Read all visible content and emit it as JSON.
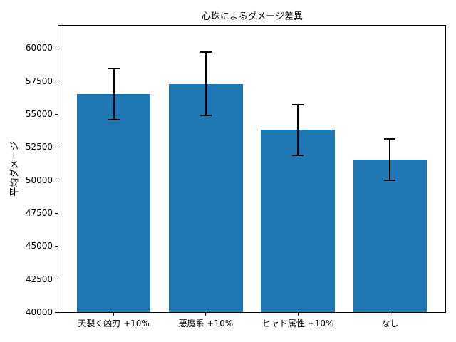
{
  "chart_data": {
    "type": "bar",
    "title": "心珠によるダメージ差異",
    "xlabel": "",
    "ylabel": "平均ダメージ",
    "categories": [
      "天裂く凶刃 +10%",
      "悪魔系 +10%",
      "ヒャド属性 +10%",
      "なし"
    ],
    "values": [
      56500,
      57300,
      53800,
      51550
    ],
    "error_bars": [
      1950,
      2400,
      1900,
      1550
    ],
    "ylim": [
      40000,
      61700
    ],
    "yticks": [
      40000,
      42500,
      45000,
      47500,
      50000,
      52500,
      55000,
      57500,
      60000
    ],
    "bar_width_fraction": 0.8,
    "bar_color": "#1f77b4",
    "error_color": "#000000",
    "axis_color": "#000000",
    "text_color": "#000000",
    "background_color": "#ffffff",
    "grid": false,
    "legend": "none"
  }
}
